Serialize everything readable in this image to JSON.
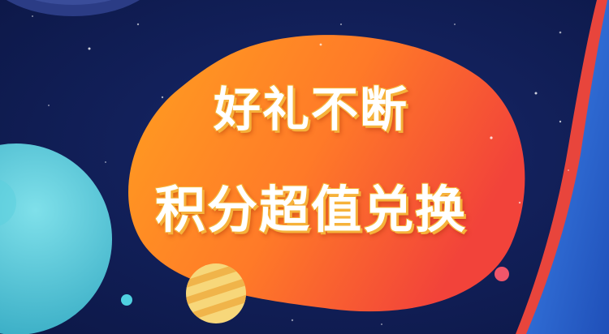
{
  "banner": {
    "headline_line1": "好礼不断",
    "headline_line2": "积分超值兑换"
  },
  "colors": {
    "background": "#12205a",
    "blob_start": "#ff9a1e",
    "blob_end": "#f4433c",
    "planet_teal": "#4fc6d6",
    "planet_striped": "#f7d77a",
    "ring_red": "#e8453c",
    "ring_blue": "#2f6bd8",
    "text_outline": "#f6b23a"
  }
}
